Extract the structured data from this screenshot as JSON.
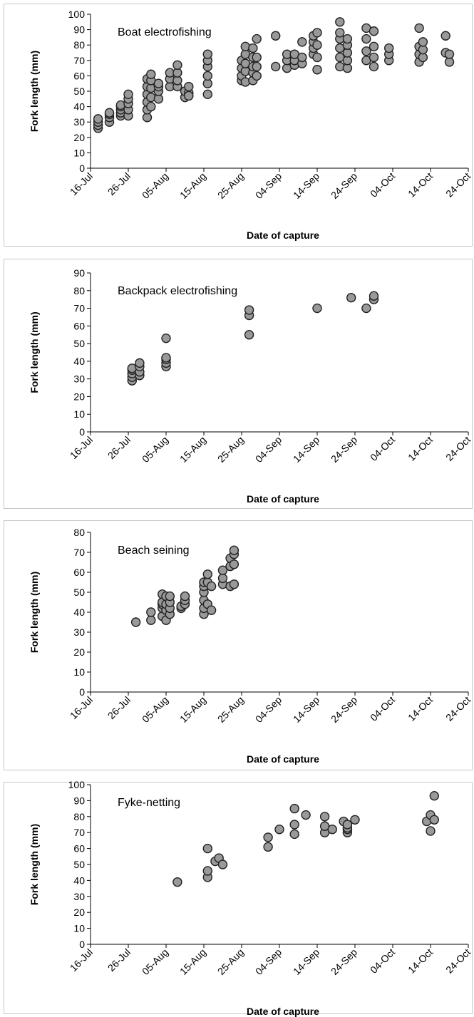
{
  "chart_data": [
    {
      "type": "scatter",
      "title": "Boat electrofishing",
      "xlabel": "Date of capture",
      "ylabel": "Fork length (mm)",
      "color": "#999999",
      "xlim": [
        "16-Jul",
        "24-Oct"
      ],
      "xticks": [
        "16-Jul",
        "26-Jul",
        "05-Aug",
        "15-Aug",
        "25-Aug",
        "04-Sep",
        "14-Sep",
        "24-Sep",
        "04-Oct",
        "14-Oct",
        "24-Oct"
      ],
      "ylim": [
        0,
        100
      ],
      "yticks": [
        0,
        10,
        20,
        30,
        40,
        50,
        60,
        70,
        80,
        90,
        100
      ],
      "x": [
        "18-Jul",
        "18-Jul",
        "18-Jul",
        "18-Jul",
        "21-Jul",
        "21-Jul",
        "21-Jul",
        "21-Jul",
        "24-Jul",
        "24-Jul",
        "24-Jul",
        "24-Jul",
        "24-Jul",
        "26-Jul",
        "26-Jul",
        "26-Jul",
        "26-Jul",
        "26-Jul",
        "31-Jul",
        "31-Jul",
        "31-Jul",
        "31-Jul",
        "31-Jul",
        "31-Jul",
        "01-Aug",
        "01-Aug",
        "01-Aug",
        "01-Aug",
        "01-Aug",
        "03-Aug",
        "03-Aug",
        "03-Aug",
        "03-Aug",
        "06-Aug",
        "06-Aug",
        "06-Aug",
        "08-Aug",
        "08-Aug",
        "08-Aug",
        "08-Aug",
        "10-Aug",
        "10-Aug",
        "11-Aug",
        "11-Aug",
        "11-Aug",
        "16-Aug",
        "16-Aug",
        "16-Aug",
        "16-Aug",
        "16-Aug",
        "16-Aug",
        "25-Aug",
        "25-Aug",
        "25-Aug",
        "25-Aug",
        "26-Aug",
        "26-Aug",
        "26-Aug",
        "26-Aug",
        "26-Aug",
        "28-Aug",
        "28-Aug",
        "28-Aug",
        "28-Aug",
        "28-Aug",
        "29-Aug",
        "29-Aug",
        "29-Aug",
        "29-Aug",
        "03-Sep",
        "03-Sep",
        "06-Sep",
        "06-Sep",
        "06-Sep",
        "08-Sep",
        "08-Sep",
        "08-Sep",
        "10-Sep",
        "10-Sep",
        "10-Sep",
        "13-Sep",
        "13-Sep",
        "13-Sep",
        "13-Sep",
        "14-Sep",
        "14-Sep",
        "14-Sep",
        "14-Sep",
        "20-Sep",
        "20-Sep",
        "20-Sep",
        "20-Sep",
        "20-Sep",
        "20-Sep",
        "22-Sep",
        "22-Sep",
        "22-Sep",
        "22-Sep",
        "22-Sep",
        "27-Sep",
        "27-Sep",
        "27-Sep",
        "27-Sep",
        "29-Sep",
        "29-Sep",
        "29-Sep",
        "29-Sep",
        "03-Oct",
        "03-Oct",
        "03-Oct",
        "11-Oct",
        "11-Oct",
        "11-Oct",
        "11-Oct",
        "12-Oct",
        "12-Oct",
        "12-Oct",
        "18-Oct",
        "18-Oct",
        "19-Oct",
        "19-Oct"
      ],
      "values": [
        26,
        28,
        30,
        32,
        30,
        33,
        35,
        36,
        34,
        36,
        38,
        40,
        41,
        34,
        38,
        42,
        45,
        48,
        33,
        38,
        43,
        48,
        53,
        58,
        40,
        46,
        52,
        57,
        61,
        45,
        50,
        53,
        55,
        53,
        58,
        62,
        53,
        57,
        62,
        67,
        46,
        50,
        49,
        53,
        47,
        48,
        55,
        60,
        66,
        70,
        74,
        57,
        60,
        65,
        70,
        56,
        63,
        68,
        74,
        79,
        57,
        62,
        66,
        72,
        78,
        60,
        66,
        72,
        84,
        66,
        86,
        65,
        70,
        74,
        67,
        70,
        74,
        68,
        72,
        82,
        74,
        78,
        82,
        86,
        64,
        72,
        80,
        88,
        66,
        72,
        78,
        84,
        88,
        95,
        65,
        70,
        75,
        80,
        84,
        70,
        76,
        84,
        91,
        66,
        72,
        79,
        89,
        70,
        74,
        78,
        69,
        74,
        79,
        91,
        72,
        77,
        82,
        75,
        86,
        69,
        74
      ],
      "series_note_free": null
    },
    {
      "type": "scatter",
      "title": "Backpack electrofishing",
      "xlabel": "Date of capture",
      "ylabel": "Fork length (mm)",
      "color": "#999999",
      "xlim": [
        "16-Jul",
        "24-Oct"
      ],
      "xticks": [
        "16-Jul",
        "26-Jul",
        "05-Aug",
        "15-Aug",
        "25-Aug",
        "04-Sep",
        "14-Sep",
        "24-Sep",
        "04-Oct",
        "14-Oct",
        "24-Oct"
      ],
      "ylim": [
        0,
        90
      ],
      "yticks": [
        0,
        10,
        20,
        30,
        40,
        50,
        60,
        70,
        80,
        90
      ],
      "x": [
        "27-Jul",
        "27-Jul",
        "27-Jul",
        "27-Jul",
        "27-Jul",
        "29-Jul",
        "29-Jul",
        "29-Jul",
        "29-Jul",
        "05-Aug",
        "05-Aug",
        "05-Aug",
        "05-Aug",
        "05-Aug",
        "27-Aug",
        "27-Aug",
        "27-Aug",
        "14-Sep",
        "23-Sep",
        "27-Sep",
        "29-Sep",
        "29-Sep"
      ],
      "values": [
        29,
        31,
        33,
        35,
        36,
        32,
        34,
        37,
        39,
        37,
        39,
        41,
        42,
        53,
        55,
        66,
        69,
        70,
        76,
        70,
        75,
        77
      ]
    },
    {
      "type": "scatter",
      "title": "Beach seining",
      "xlabel": "Date of capture",
      "ylabel": "Fork length (mm)",
      "color": "#999999",
      "xlim": [
        "16-Jul",
        "24-Oct"
      ],
      "xticks": [
        "16-Jul",
        "26-Jul",
        "05-Aug",
        "15-Aug",
        "25-Aug",
        "04-Sep",
        "14-Sep",
        "24-Sep",
        "04-Oct",
        "14-Oct",
        "24-Oct"
      ],
      "ylim": [
        0,
        80
      ],
      "yticks": [
        0,
        10,
        20,
        30,
        40,
        50,
        60,
        70,
        80
      ],
      "x": [
        "28-Jul",
        "01-Aug",
        "01-Aug",
        "04-Aug",
        "04-Aug",
        "04-Aug",
        "04-Aug",
        "04-Aug",
        "05-Aug",
        "05-Aug",
        "05-Aug",
        "05-Aug",
        "06-Aug",
        "06-Aug",
        "06-Aug",
        "06-Aug",
        "09-Aug",
        "09-Aug",
        "10-Aug",
        "10-Aug",
        "10-Aug",
        "15-Aug",
        "15-Aug",
        "15-Aug",
        "15-Aug",
        "15-Aug",
        "15-Aug",
        "16-Aug",
        "16-Aug",
        "16-Aug",
        "17-Aug",
        "17-Aug",
        "20-Aug",
        "20-Aug",
        "20-Aug",
        "22-Aug",
        "22-Aug",
        "22-Aug",
        "23-Aug",
        "23-Aug",
        "23-Aug",
        "23-Aug"
      ],
      "values": [
        35,
        36,
        40,
        38,
        42,
        44,
        45,
        49,
        36,
        41,
        44,
        48,
        39,
        42,
        45,
        48,
        42,
        43,
        44,
        46,
        48,
        39,
        42,
        46,
        50,
        53,
        55,
        44,
        55,
        59,
        41,
        53,
        54,
        57,
        61,
        53,
        63,
        67,
        54,
        64,
        69,
        71
      ]
    },
    {
      "type": "scatter",
      "title": "Fyke-netting",
      "xlabel": "Date of capture",
      "ylabel": "Fork length (mm)",
      "color": "#999999",
      "xlim": [
        "16-Jul",
        "24-Oct"
      ],
      "xticks": [
        "16-Jul",
        "26-Jul",
        "05-Aug",
        "15-Aug",
        "25-Aug",
        "04-Sep",
        "14-Sep",
        "24-Sep",
        "04-Oct",
        "14-Oct",
        "24-Oct"
      ],
      "ylim": [
        0,
        100
      ],
      "yticks": [
        0,
        10,
        20,
        30,
        40,
        50,
        60,
        70,
        80,
        90,
        100
      ],
      "x": [
        "08-Aug",
        "16-Aug",
        "16-Aug",
        "16-Aug",
        "18-Aug",
        "19-Aug",
        "20-Aug",
        "01-Sep",
        "01-Sep",
        "04-Sep",
        "08-Sep",
        "08-Sep",
        "08-Sep",
        "11-Sep",
        "16-Sep",
        "16-Sep",
        "16-Sep",
        "18-Sep",
        "21-Sep",
        "22-Sep",
        "22-Sep",
        "22-Sep",
        "22-Sep",
        "24-Sep",
        "13-Oct",
        "14-Oct",
        "14-Oct",
        "15-Oct",
        "15-Oct"
      ],
      "values": [
        39,
        42,
        46,
        60,
        52,
        54,
        50,
        61,
        67,
        72,
        69,
        75,
        85,
        81,
        70,
        74,
        80,
        72,
        77,
        70,
        72,
        73,
        75,
        78,
        77,
        71,
        81,
        93,
        78
      ]
    }
  ]
}
